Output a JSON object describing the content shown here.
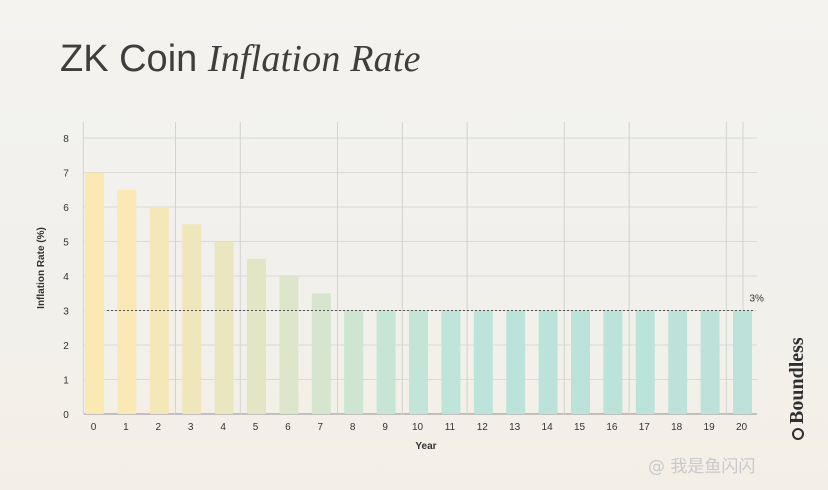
{
  "title": {
    "part1": "ZK Coin",
    "part2": "Inflation Rate"
  },
  "brand": "Boundless",
  "watermark": "@ 我是鱼闪闪",
  "chart_data": {
    "type": "bar",
    "title": "ZK Coin Inflation Rate",
    "xlabel": "Year",
    "ylabel": "Inflation Rate (%)",
    "ylim": [
      0,
      8
    ],
    "yticks": [
      "0",
      "1",
      "2",
      "3",
      "4",
      "5",
      "6",
      "7",
      "8"
    ],
    "categories": [
      "0",
      "1",
      "2",
      "3",
      "4",
      "5",
      "6",
      "7",
      "8",
      "9",
      "10",
      "11",
      "12",
      "13",
      "14",
      "15",
      "16",
      "17",
      "18",
      "19",
      "20"
    ],
    "values": [
      7,
      6.5,
      6,
      5.5,
      5,
      4.5,
      4,
      3.5,
      3,
      3,
      3,
      3,
      3,
      3,
      3,
      3,
      3,
      3,
      3,
      3,
      3
    ],
    "reference_line": {
      "value": 3,
      "label": "3%"
    },
    "grid": true,
    "colors": [
      "#fbe9b3",
      "#fae9b5",
      "#f6e7b8",
      "#f0e6bb",
      "#eae6c0",
      "#e3e6c5",
      "#dde6ca",
      "#d6e5cd",
      "#cde5d1",
      "#c6e5d5",
      "#c2e5d8",
      "#bfe4d9",
      "#bde4da",
      "#bce3da",
      "#bce3da",
      "#bce3da",
      "#bce3da",
      "#bce3da",
      "#bde2da",
      "#bde2da",
      "#bde2da"
    ]
  }
}
